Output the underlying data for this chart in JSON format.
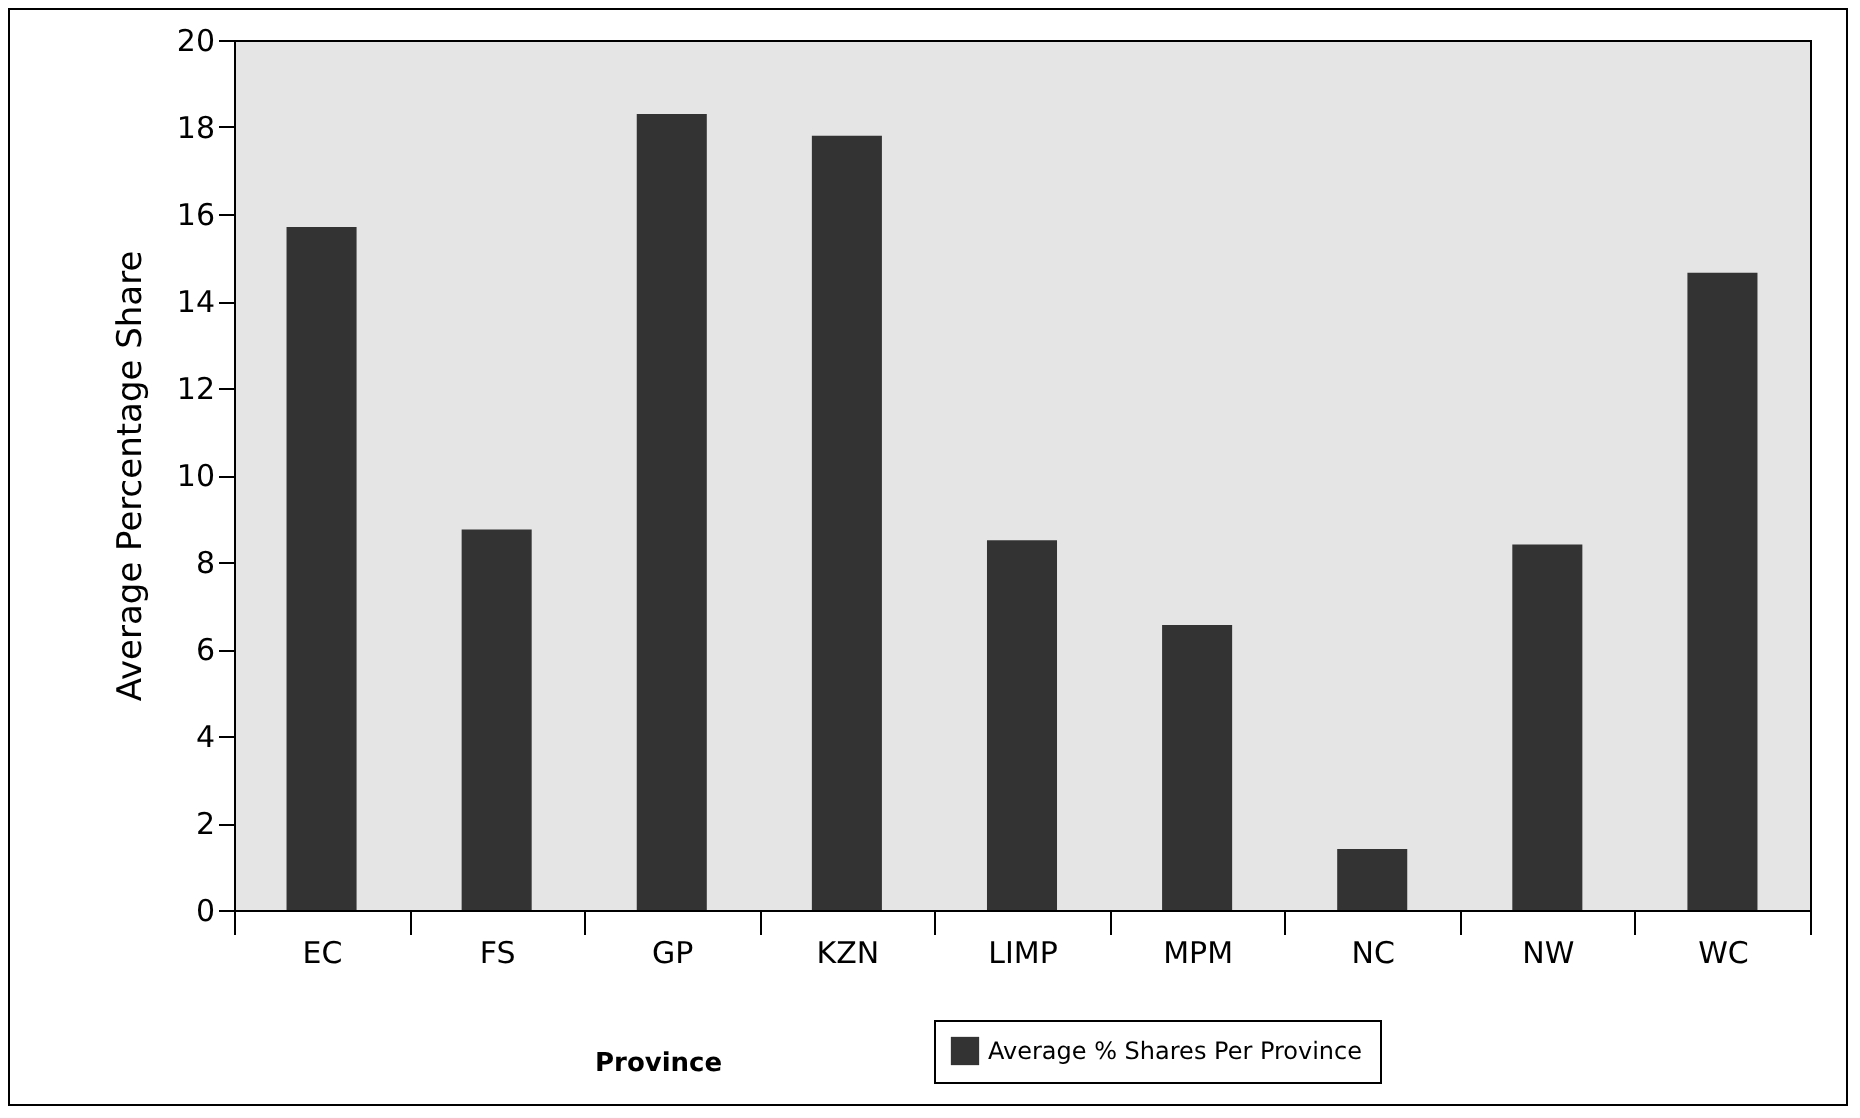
{
  "chart_data": {
    "type": "bar",
    "xlabel": "Province",
    "ylabel": "Average Percentage Share",
    "categories": [
      "EC",
      "FS",
      "GP",
      "KZN",
      "LIMP",
      "MPM",
      "NC",
      "NW",
      "WC"
    ],
    "series": [
      {
        "name": "Average % Shares Per Province",
        "color": "#333333",
        "values": [
          15.7,
          8.75,
          18.3,
          17.8,
          8.5,
          6.55,
          1.4,
          8.4,
          14.65
        ]
      }
    ],
    "ylim": [
      0,
      20
    ],
    "yticks": [
      0,
      2,
      4,
      6,
      8,
      10,
      12,
      14,
      16,
      18,
      20
    ],
    "grid": false,
    "legend": "bottom"
  }
}
